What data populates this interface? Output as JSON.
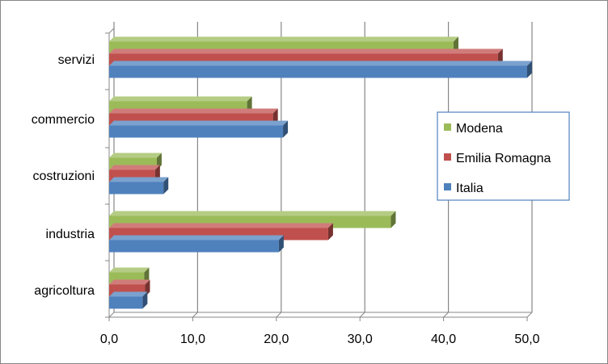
{
  "chart_data": {
    "type": "bar",
    "orientation": "horizontal",
    "style": "3d-clustered",
    "categories": [
      "agricoltura",
      "industria",
      "costruzioni",
      "commercio",
      "servizi"
    ],
    "series": [
      {
        "name": "Italia",
        "color": "#4F81BD",
        "values": [
          4.0,
          20.3,
          6.5,
          20.8,
          50.0
        ]
      },
      {
        "name": "Emilia Romagna",
        "color": "#C0504D",
        "values": [
          4.3,
          26.2,
          5.5,
          19.6,
          46.5
        ]
      },
      {
        "name": "Modena",
        "color": "#9BBB59",
        "values": [
          4.2,
          33.7,
          5.7,
          16.5,
          41.2
        ]
      }
    ],
    "x_ticks": [
      "0,0",
      "10,0",
      "20,0",
      "30,0",
      "40,0",
      "50,0"
    ],
    "xlim": [
      0,
      50
    ],
    "grid": "vertical-major",
    "legend": {
      "position": "right",
      "order": [
        "Modena",
        "Emilia Romagna",
        "Italia"
      ]
    },
    "title": "",
    "xlabel": "",
    "ylabel": ""
  }
}
